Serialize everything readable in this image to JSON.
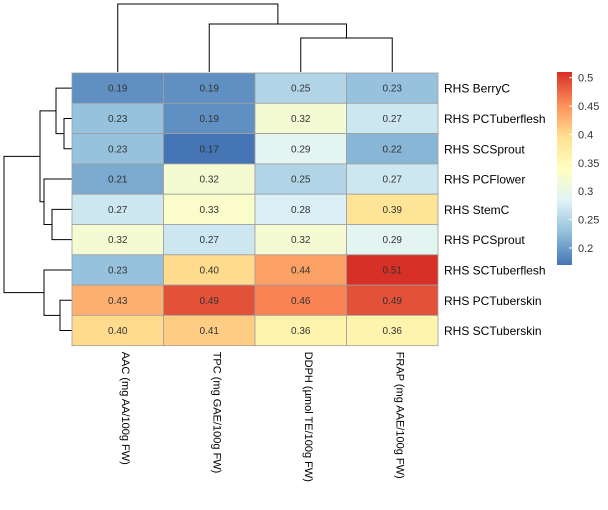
{
  "chart_data": {
    "type": "heatmap",
    "rows": [
      "RHS BerryC",
      "RHS PCTuberflesh",
      "RHS SCSprout",
      "RHS PCFlower",
      "RHS StemC",
      "RHS PCSprout",
      "RHS SCTuberflesh",
      "RHS PCTuberskin",
      "RHS SCTuberskin"
    ],
    "columns": [
      "AAC (mg AA/100g FW)",
      "TPC (mg GAE/100g FW)",
      "DDPH (µmol TE/100g FW)",
      "FRAP (mg AAE/100g FW)"
    ],
    "values": [
      [
        0.19,
        0.19,
        0.25,
        0.23
      ],
      [
        0.23,
        0.19,
        0.32,
        0.27
      ],
      [
        0.23,
        0.17,
        0.29,
        0.22
      ],
      [
        0.21,
        0.32,
        0.25,
        0.27
      ],
      [
        0.27,
        0.33,
        0.28,
        0.39
      ],
      [
        0.32,
        0.27,
        0.32,
        0.29
      ],
      [
        0.23,
        0.4,
        0.44,
        0.51
      ],
      [
        0.43,
        0.49,
        0.46,
        0.49
      ],
      [
        0.4,
        0.41,
        0.36,
        0.36
      ]
    ],
    "value_labels": [
      [
        "0.19",
        "0.19",
        "0.25",
        "0.23"
      ],
      [
        "0.23",
        "0.19",
        "0.32",
        "0.27"
      ],
      [
        "0.23",
        "0.17",
        "0.29",
        "0.22"
      ],
      [
        "0.21",
        "0.32",
        "0.25",
        "0.27"
      ],
      [
        "0.27",
        "0.33",
        "0.28",
        "0.39"
      ],
      [
        "0.32",
        "0.27",
        "0.32",
        "0.29"
      ],
      [
        "0.23",
        "0.40",
        "0.44",
        "0.51"
      ],
      [
        "0.43",
        "0.49",
        "0.46",
        "0.49"
      ],
      [
        "0.40",
        "0.41",
        "0.36",
        "0.36"
      ]
    ],
    "color_scale": {
      "range": [
        0.17,
        0.51
      ],
      "ticks": [
        0.2,
        0.25,
        0.3,
        0.35,
        0.4,
        0.45,
        0.5
      ],
      "tick_labels": [
        "0.2",
        "0.25",
        "0.3",
        "0.35",
        "0.4",
        "0.45",
        "0.5"
      ],
      "colors": [
        "#4575b4",
        "#91bfdb",
        "#e0f3f8",
        "#ffffbf",
        "#fee090",
        "#fc8d59",
        "#d73027"
      ]
    },
    "row_dendrogram": true,
    "column_dendrogram": true,
    "legend_position": "right"
  }
}
